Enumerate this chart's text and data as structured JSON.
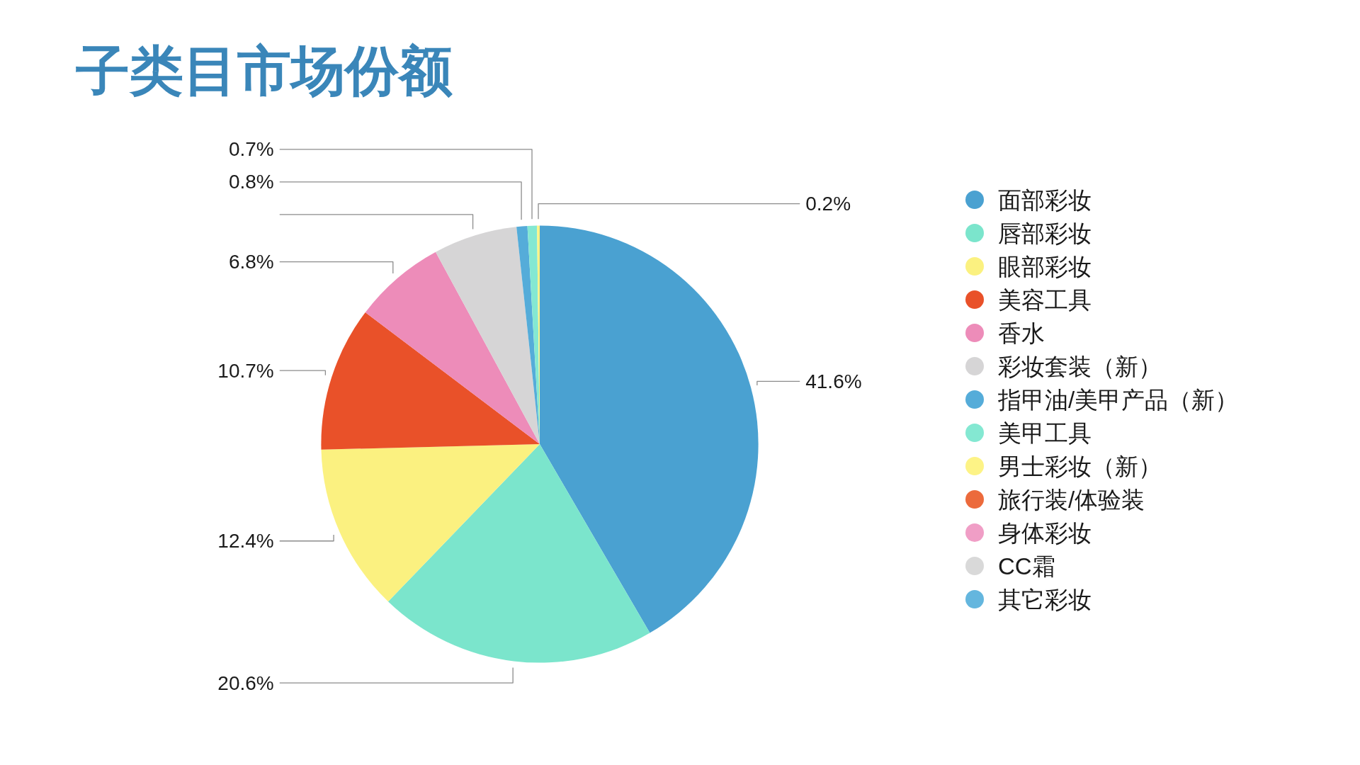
{
  "chart_data": {
    "type": "pie",
    "title": "子类目市场份额",
    "categories": [
      "面部彩妆",
      "唇部彩妆",
      "眼部彩妆",
      "美容工具",
      "香水",
      "彩妆套装（新）",
      "指甲油/美甲产品（新）",
      "美甲工具",
      "男士彩妆（新）",
      "旅行装/体验装",
      "身体彩妆",
      "CC霜",
      "其它彩妆"
    ],
    "values": [
      41.6,
      20.6,
      12.4,
      10.7,
      6.8,
      6.2,
      0.8,
      0.7,
      0.2,
      0,
      0,
      0,
      0
    ],
    "colors": [
      "#4aa1d1",
      "#7be5cc",
      "#fbf180",
      "#e95129",
      "#ed8cb9",
      "#d6d5d6",
      "#55acd9",
      "#84e8d2",
      "#fdf386",
      "#ec6a3c",
      "#f09ec6",
      "#d9d9d9",
      "#64b6de"
    ],
    "value_labels": [
      "41.6%",
      "20.6%",
      "12.4%",
      "10.7%",
      "6.8%",
      null,
      "0.8%",
      "0.7%",
      "0.2%",
      null,
      null,
      null,
      null
    ],
    "legend": "right"
  }
}
